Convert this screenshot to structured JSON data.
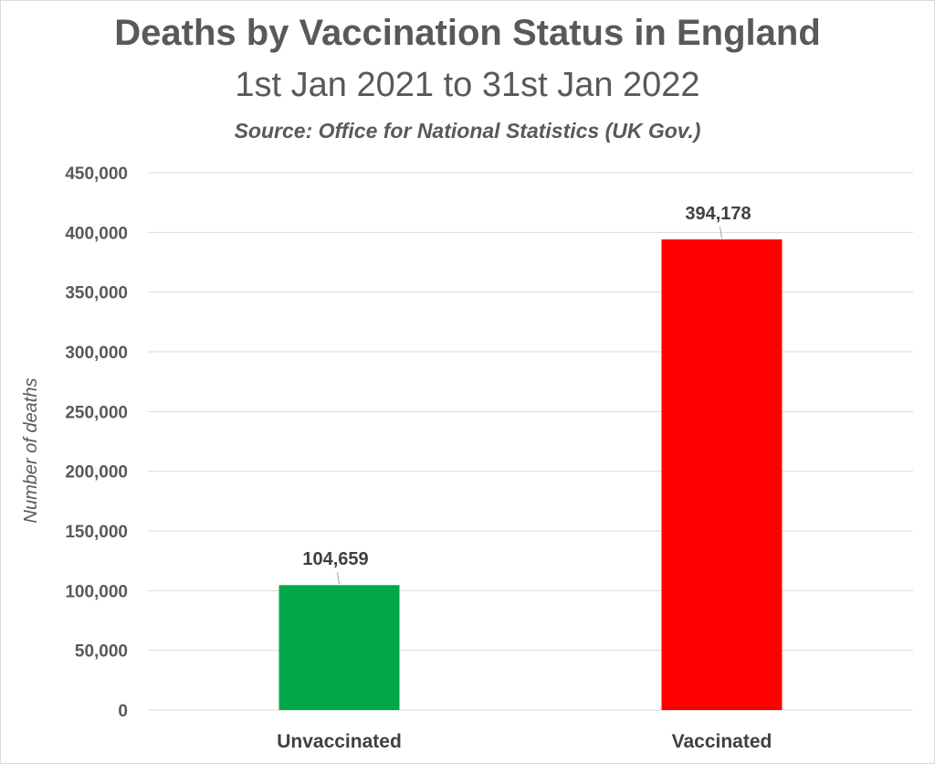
{
  "chart_data": {
    "type": "bar",
    "title": "Deaths by Vaccination Status in England",
    "subtitle": "1st Jan 2021 to 31st Jan 2022",
    "source": "Source:  Office for National Statistics (UK Gov.)",
    "xlabel": "",
    "ylabel": "Number of deaths",
    "ylim": [
      0,
      450000
    ],
    "yticks": [
      0,
      50000,
      100000,
      150000,
      200000,
      250000,
      300000,
      350000,
      400000,
      450000
    ],
    "ytick_labels": [
      "0",
      "50,000",
      "100,000",
      "150,000",
      "200,000",
      "250,000",
      "300,000",
      "350,000",
      "400,000",
      "450,000"
    ],
    "grid": true,
    "legend": "none",
    "categories": [
      "Unvaccinated",
      "Vaccinated"
    ],
    "values": [
      104659,
      394178
    ],
    "data_labels": [
      "104,659",
      "394,178"
    ],
    "colors": [
      "#00a84a",
      "#ff0000"
    ],
    "grid_color": "#d9d9d9",
    "text_color": "#595959"
  }
}
